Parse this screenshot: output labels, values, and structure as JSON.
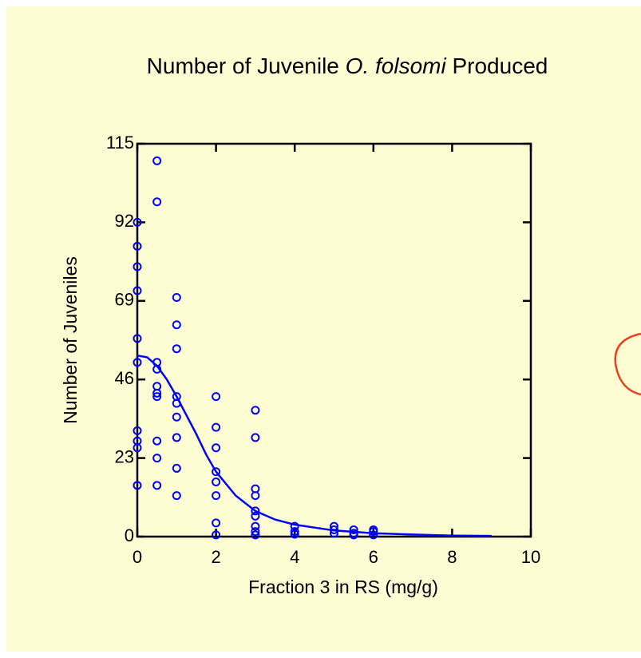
{
  "chart_data": {
    "type": "scatter",
    "title": [
      "Number of Juvenile ",
      "O. folsomi",
      " Produced"
    ],
    "x_label": "Fraction 3 in RS (mg/g)",
    "y_label": "Number of Juveniles",
    "xlim": [
      0,
      10
    ],
    "ylim": [
      0,
      115
    ],
    "xticks": [
      0,
      2,
      4,
      6,
      8,
      10
    ],
    "yticks": [
      0,
      23,
      46,
      69,
      92,
      115
    ],
    "series": [
      {
        "type": "scatter",
        "color": "#0000ff",
        "x": [
          0,
          0,
          0,
          0,
          0,
          0,
          0,
          0,
          0,
          0,
          0.5,
          0.5,
          0.5,
          0.5,
          0.5,
          0.5,
          0.5,
          0.5,
          0.5,
          0.5,
          1,
          1,
          1,
          1,
          1,
          1,
          1,
          1,
          1,
          2,
          2,
          2,
          2,
          2,
          2,
          2,
          2,
          3,
          3,
          3,
          3,
          3,
          3,
          3,
          3,
          3,
          4,
          4,
          4,
          5,
          5,
          5,
          5.5,
          5.5,
          5.5,
          6,
          6,
          6
        ],
        "values": [
          92,
          85,
          79,
          72,
          58,
          51,
          31,
          28,
          26,
          15,
          110,
          98,
          51,
          49,
          44,
          42,
          41,
          28,
          23,
          15,
          70,
          62,
          55,
          41,
          39,
          35,
          29,
          20,
          12,
          41,
          32,
          26,
          19,
          16,
          12,
          4,
          0.5,
          37,
          29,
          14,
          12,
          7.5,
          6,
          3,
          1.5,
          0.5,
          3,
          1.5,
          0.7,
          3,
          2,
          1,
          2,
          1,
          0.5,
          2,
          1.5,
          0.5
        ]
      },
      {
        "type": "line",
        "color": "#0000ff",
        "x": [
          0,
          0.25,
          0.5,
          0.75,
          1,
          1.25,
          1.5,
          1.75,
          2,
          2.5,
          3,
          3.5,
          4,
          5,
          6,
          7,
          8,
          9
        ],
        "values": [
          53,
          52.5,
          50,
          46,
          41,
          35.5,
          30,
          24,
          19,
          12,
          7.5,
          5,
          3.5,
          1.8,
          1,
          0.6,
          0.3,
          0.2
        ]
      }
    ]
  }
}
